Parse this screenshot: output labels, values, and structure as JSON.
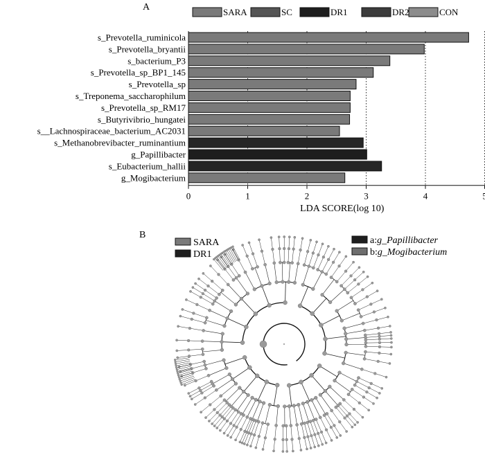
{
  "panels": {
    "a": {
      "label": "A"
    },
    "b": {
      "label": "B"
    }
  },
  "chart_data": [
    {
      "type": "bar",
      "orientation": "horizontal",
      "title": "",
      "xlabel": "LDA SCORE(log 10)",
      "ylabel": "",
      "xlim": [
        0,
        5
      ],
      "xticks": [
        0,
        1,
        2,
        3,
        4,
        5
      ],
      "grid": "dotted vertical lines at 1, 2, 3, 4, 5",
      "legend_position": "top",
      "legend": [
        {
          "name": "SARA",
          "color": "#7a7a7a"
        },
        {
          "name": "SC",
          "color": "#555555"
        },
        {
          "name": "DR1",
          "color": "#1e1e1e"
        },
        {
          "name": "DR2",
          "color": "#3c3c3c"
        },
        {
          "name": "CON",
          "color": "#8c8c8c"
        }
      ],
      "categories": [
        "s_Prevotella_ruminicola",
        "s_Prevotella_bryantii",
        "s_bacterium_P3",
        "s_Prevotella_sp_BP1_145",
        "s_Prevotella_sp",
        "s_Treponema_saccharophilum",
        "s_Prevotella_sp_RM17",
        "s_Butyrivibrio_hungatei",
        "s__Lachnospiraceae_bacterium_AC2031",
        "s_Methanobrevibacter_ruminantium",
        "g_Papillibacter",
        "s_Eubacterium_hallii",
        "g_Mogibacterium"
      ],
      "values": [
        4.73,
        3.98,
        3.4,
        3.12,
        2.83,
        2.73,
        2.73,
        2.72,
        2.55,
        2.95,
        3.01,
        3.26,
        2.64
      ],
      "groups": [
        "SARA",
        "SARA",
        "SARA",
        "SARA",
        "SARA",
        "SARA",
        "SARA",
        "SARA",
        "SARA",
        "DR1",
        "DR1",
        "DR1",
        "SARA"
      ],
      "colors": [
        "#7a7a7a",
        "#7a7a7a",
        "#7a7a7a",
        "#7a7a7a",
        "#7a7a7a",
        "#7a7a7a",
        "#7a7a7a",
        "#7a7a7a",
        "#7a7a7a",
        "#262626",
        "#1e1e1e",
        "#262626",
        "#7a7a7a"
      ]
    },
    {
      "type": "cladogram",
      "title": "",
      "legend": [
        {
          "name": "SARA",
          "color": "#7a7a7a"
        },
        {
          "name": "DR1",
          "color": "#1e1e1e"
        }
      ],
      "highlighted_taxa": [
        {
          "prefix": "a:",
          "name": "g_Papillibacter",
          "color": "#1e1e1e"
        },
        {
          "prefix": "b:",
          "name": "g_Mogibacterium",
          "color": "#6e6e6e"
        }
      ],
      "node_color": "#9a9a9a"
    }
  ]
}
